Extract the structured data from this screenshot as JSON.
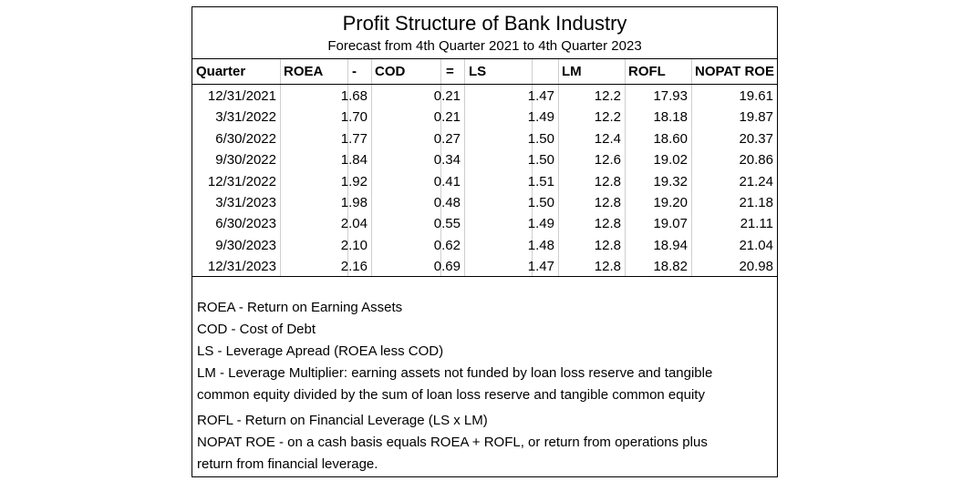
{
  "title": "Profit Structure of Bank Industry",
  "subtitle": "Forecast from 4th Quarter 2021 to 4th Quarter 2023",
  "headers": [
    "Quarter",
    "ROEA",
    "-",
    "COD",
    "=",
    "LS",
    "LM",
    "ROFL",
    "NOPAT ROE"
  ],
  "rows": [
    {
      "quarter": "12/31/2021",
      "roea": "1.68",
      "cod": "0.21",
      "ls": "1.47",
      "lm": "12.2",
      "rofl": "17.93",
      "nopat_roe": "19.61"
    },
    {
      "quarter": "3/31/2022",
      "roea": "1.70",
      "cod": "0.21",
      "ls": "1.49",
      "lm": "12.2",
      "rofl": "18.18",
      "nopat_roe": "19.87"
    },
    {
      "quarter": "6/30/2022",
      "roea": "1.77",
      "cod": "0.27",
      "ls": "1.50",
      "lm": "12.4",
      "rofl": "18.60",
      "nopat_roe": "20.37"
    },
    {
      "quarter": "9/30/2022",
      "roea": "1.84",
      "cod": "0.34",
      "ls": "1.50",
      "lm": "12.6",
      "rofl": "19.02",
      "nopat_roe": "20.86"
    },
    {
      "quarter": "12/31/2022",
      "roea": "1.92",
      "cod": "0.41",
      "ls": "1.51",
      "lm": "12.8",
      "rofl": "19.32",
      "nopat_roe": "21.24"
    },
    {
      "quarter": "3/31/2023",
      "roea": "1.98",
      "cod": "0.48",
      "ls": "1.50",
      "lm": "12.8",
      "rofl": "19.20",
      "nopat_roe": "21.18"
    },
    {
      "quarter": "6/30/2023",
      "roea": "2.04",
      "cod": "0.55",
      "ls": "1.49",
      "lm": "12.8",
      "rofl": "19.07",
      "nopat_roe": "21.11"
    },
    {
      "quarter": "9/30/2023",
      "roea": "2.10",
      "cod": "0.62",
      "ls": "1.48",
      "lm": "12.8",
      "rofl": "18.94",
      "nopat_roe": "21.04"
    },
    {
      "quarter": "12/31/2023",
      "roea": "2.16",
      "cod": "0.69",
      "ls": "1.47",
      "lm": "12.8",
      "rofl": "18.82",
      "nopat_roe": "20.98"
    }
  ],
  "legend": [
    "ROEA - Return on Earning Assets",
    "COD - Cost of Debt",
    "LS - Leverage Apread (ROEA less COD)",
    "LM - Leverage Multiplier: earning assets not funded by loan loss reserve and tangible",
    "common equity divided by the sum of loan loss reserve and tangible common equity",
    "ROFL - Return on Financial Leverage (LS x LM)",
    "NOPAT ROE - on a cash basis equals ROEA + ROFL, or return from operations plus",
    "return from financial leverage."
  ]
}
